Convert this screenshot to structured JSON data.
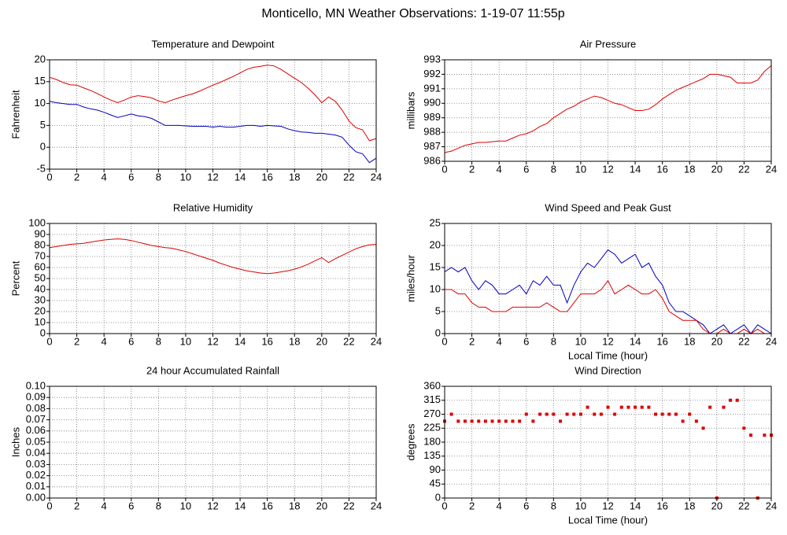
{
  "title": "Monticello, MN Weather Observations: 1-19-07 11:55p",
  "chart_data": [
    {
      "type": "line",
      "title": "Temperature and Dewpoint",
      "ylabel": "Fahrenheit",
      "x": [
        0,
        0.5,
        1,
        1.5,
        2,
        2.5,
        3,
        3.5,
        4,
        4.5,
        5,
        5.5,
        6,
        6.5,
        7,
        7.5,
        8,
        8.5,
        9,
        9.5,
        10,
        10.5,
        11,
        11.5,
        12,
        12.5,
        13,
        13.5,
        14,
        14.5,
        15,
        15.5,
        16,
        16.5,
        17,
        17.5,
        18,
        18.5,
        19,
        19.5,
        20,
        20.5,
        21,
        21.5,
        22,
        22.5,
        23,
        23.5,
        24
      ],
      "series": [
        {
          "color": "#dd0000",
          "values": [
            16,
            15.5,
            14.8,
            14.3,
            14.2,
            13.6,
            13,
            12.3,
            11.5,
            10.8,
            10.2,
            10.8,
            11.5,
            11.8,
            11.6,
            11.3,
            10.6,
            10.2,
            10.8,
            11.3,
            11.8,
            12.2,
            12.8,
            13.5,
            14.2,
            14.8,
            15.5,
            16.2,
            17,
            17.8,
            18.3,
            18.5,
            18.8,
            18.6,
            17.8,
            16.8,
            15.8,
            14.8,
            13.5,
            12,
            10.2,
            11.5,
            10.5,
            8.5,
            6,
            4.5,
            4,
            1.5,
            2
          ]
        },
        {
          "color": "#0000bb",
          "values": [
            10.5,
            10.2,
            10,
            9.8,
            9.8,
            9.2,
            8.8,
            8.5,
            8,
            7.4,
            6.8,
            7.2,
            7.6,
            7.2,
            7,
            6.6,
            5.8,
            5,
            5,
            5,
            4.9,
            4.8,
            4.8,
            4.8,
            4.6,
            4.8,
            4.6,
            4.6,
            4.8,
            5,
            5,
            4.8,
            5,
            4.9,
            4.8,
            4.2,
            3.8,
            3.5,
            3.4,
            3.2,
            3.2,
            3,
            2.8,
            2.3,
            0.5,
            -1,
            -1.5,
            -3.5,
            -2.5
          ]
        }
      ],
      "xlim": [
        0,
        24
      ],
      "xticks": [
        0,
        2,
        4,
        6,
        8,
        10,
        12,
        14,
        16,
        18,
        20,
        22,
        24
      ],
      "ylim": [
        -5,
        20
      ],
      "yticks": [
        -5,
        0,
        5,
        10,
        15,
        20
      ],
      "grid": true
    },
    {
      "type": "line",
      "title": "Air Pressure",
      "ylabel": "millibars",
      "x": [
        0,
        0.5,
        1,
        1.5,
        2,
        2.5,
        3,
        3.5,
        4,
        4.5,
        5,
        5.5,
        6,
        6.5,
        7,
        7.5,
        8,
        8.5,
        9,
        9.5,
        10,
        10.5,
        11,
        11.5,
        12,
        12.5,
        13,
        13.5,
        14,
        14.5,
        15,
        15.5,
        16,
        16.5,
        17,
        17.5,
        18,
        18.5,
        19,
        19.5,
        20,
        20.5,
        21,
        21.5,
        22,
        22.5,
        23,
        23.5,
        24
      ],
      "series": [
        {
          "color": "#dd0000",
          "values": [
            986.6,
            986.7,
            986.9,
            987.1,
            987.2,
            987.3,
            987.3,
            987.35,
            987.4,
            987.4,
            987.6,
            987.8,
            987.9,
            988.1,
            988.4,
            988.6,
            989,
            989.3,
            989.6,
            989.8,
            990.1,
            990.3,
            990.5,
            990.4,
            990.2,
            990,
            989.9,
            989.7,
            989.5,
            989.5,
            989.6,
            989.9,
            990.3,
            990.6,
            990.9,
            991.1,
            991.3,
            991.5,
            991.7,
            992,
            992,
            991.9,
            991.8,
            991.4,
            991.4,
            991.4,
            991.6,
            992.2,
            992.6
          ]
        }
      ],
      "xlim": [
        0,
        24
      ],
      "xticks": [
        0,
        2,
        4,
        6,
        8,
        10,
        12,
        14,
        16,
        18,
        20,
        22,
        24
      ],
      "ylim": [
        986,
        993
      ],
      "yticks": [
        986,
        987,
        988,
        989,
        990,
        991,
        992,
        993
      ],
      "grid": true
    },
    {
      "type": "line",
      "title": "Relative Humidity",
      "ylabel": "Percent",
      "x": [
        0,
        0.5,
        1,
        1.5,
        2,
        2.5,
        3,
        3.5,
        4,
        4.5,
        5,
        5.5,
        6,
        6.5,
        7,
        7.5,
        8,
        8.5,
        9,
        9.5,
        10,
        10.5,
        11,
        11.5,
        12,
        12.5,
        13,
        13.5,
        14,
        14.5,
        15,
        15.5,
        16,
        16.5,
        17,
        17.5,
        18,
        18.5,
        19,
        19.5,
        20,
        20.5,
        21,
        21.5,
        22,
        22.5,
        23,
        23.5,
        24
      ],
      "series": [
        {
          "color": "#dd0000",
          "values": [
            78,
            79,
            80,
            81,
            81.5,
            82,
            83,
            84,
            85,
            85.5,
            86,
            85.5,
            84.5,
            83,
            81.5,
            80,
            79,
            78,
            77.5,
            76,
            74.5,
            72.5,
            70.5,
            68.5,
            66.5,
            64,
            62,
            60,
            58.5,
            57,
            56,
            55,
            54.5,
            55,
            56,
            57,
            58.5,
            60.5,
            63,
            66,
            69,
            64.5,
            68,
            71,
            74,
            77,
            79,
            80.5,
            81
          ]
        }
      ],
      "xlim": [
        0,
        24
      ],
      "xticks": [
        0,
        2,
        4,
        6,
        8,
        10,
        12,
        14,
        16,
        18,
        20,
        22,
        24
      ],
      "ylim": [
        0,
        100
      ],
      "yticks": [
        0,
        10,
        20,
        30,
        40,
        50,
        60,
        70,
        80,
        90,
        100
      ],
      "grid": true
    },
    {
      "type": "line",
      "title": "Wind Speed and Peak Gust",
      "ylabel": "miles/hour",
      "xlabel": "Local Time (hour)",
      "x": [
        0,
        0.5,
        1,
        1.5,
        2,
        2.5,
        3,
        3.5,
        4,
        4.5,
        5,
        5.5,
        6,
        6.5,
        7,
        7.5,
        8,
        8.5,
        9,
        9.5,
        10,
        10.5,
        11,
        11.5,
        12,
        12.5,
        13,
        13.5,
        14,
        14.5,
        15,
        15.5,
        16,
        16.5,
        17,
        17.5,
        18,
        18.5,
        19,
        19.5,
        20,
        20.5,
        21,
        21.5,
        22,
        22.5,
        23,
        23.5,
        24
      ],
      "series": [
        {
          "color": "#0000bb",
          "values": [
            14,
            15,
            14,
            15,
            12,
            10,
            12,
            11,
            9,
            9,
            10,
            11,
            9,
            12,
            11,
            13,
            11,
            11,
            7,
            11,
            14,
            16,
            15,
            17,
            19,
            18,
            16,
            17,
            18,
            15,
            16,
            13,
            11,
            7,
            5,
            5,
            4,
            3,
            2,
            0,
            1,
            2,
            0,
            1,
            2,
            0,
            2,
            1,
            0
          ]
        },
        {
          "color": "#dd0000",
          "values": [
            10,
            10,
            9,
            9,
            7,
            6,
            6,
            5,
            5,
            5,
            6,
            6,
            6,
            6,
            6,
            7,
            6,
            5,
            5,
            7,
            9,
            9,
            9,
            10,
            12,
            9,
            10,
            11,
            10,
            9,
            9,
            10,
            8,
            5,
            4,
            3,
            3,
            3,
            1,
            0,
            0,
            1,
            0,
            0,
            1,
            0,
            1,
            0,
            0
          ]
        }
      ],
      "xlim": [
        0,
        24
      ],
      "xticks": [
        0,
        2,
        4,
        6,
        8,
        10,
        12,
        14,
        16,
        18,
        20,
        22,
        24
      ],
      "ylim": [
        0,
        25
      ],
      "yticks": [
        0,
        5,
        10,
        15,
        20,
        25
      ],
      "grid": true
    },
    {
      "type": "line",
      "title": "24 hour Accumulated Rainfall",
      "ylabel": "Inches",
      "x": [
        0,
        24
      ],
      "series": [
        {
          "color": "#dd0000",
          "values": [
            0,
            0
          ]
        }
      ],
      "xlim": [
        0,
        24
      ],
      "xticks": [
        0,
        2,
        4,
        6,
        8,
        10,
        12,
        14,
        16,
        18,
        20,
        22,
        24
      ],
      "ylim": [
        0,
        0.1
      ],
      "yticks": [
        {
          "value": 0,
          "label": "0.00"
        },
        0.01,
        0.02,
        0.03,
        0.04,
        0.05,
        0.06,
        0.07,
        0.08,
        0.09,
        {
          "value": 0.1,
          "label": "0.10"
        }
      ],
      "grid": true
    },
    {
      "type": "scatter",
      "title": "Wind Direction",
      "ylabel": "degrees",
      "xlabel": "Local Time (hour)",
      "x": [
        0,
        0.5,
        1,
        1.5,
        2,
        2.5,
        3,
        3.5,
        4,
        4.5,
        5,
        5.5,
        6,
        6.5,
        7,
        7.5,
        8,
        8.5,
        9,
        9.5,
        10,
        10.5,
        11,
        11.5,
        12,
        12.5,
        13,
        13.5,
        14,
        14.5,
        15,
        15.5,
        16,
        16.5,
        17,
        17.5,
        18,
        18.5,
        19,
        19.5,
        20,
        20.5,
        21,
        21.5,
        22,
        22.5,
        23,
        23.5,
        24
      ],
      "series": [
        {
          "color": "#dd0000",
          "values": [
            247.5,
            270,
            247.5,
            247.5,
            247.5,
            247.5,
            247.5,
            247.5,
            247.5,
            247.5,
            247.5,
            247.5,
            270,
            247.5,
            270,
            270,
            270,
            247.5,
            270,
            270,
            270,
            292.5,
            270,
            270,
            292.5,
            270,
            292.5,
            292.5,
            292.5,
            292.5,
            292.5,
            270,
            270,
            270,
            270,
            247.5,
            270,
            247.5,
            225,
            292.5,
            0,
            292.5,
            315,
            315,
            225,
            202.5,
            0,
            202.5,
            202.5
          ]
        }
      ],
      "xlim": [
        0,
        24
      ],
      "xticks": [
        0,
        2,
        4,
        6,
        8,
        10,
        12,
        14,
        16,
        18,
        20,
        22,
        24
      ],
      "ylim": [
        0,
        360
      ],
      "yticks": [
        0,
        45,
        90,
        135,
        180,
        225,
        270,
        315,
        360
      ],
      "grid": true
    }
  ]
}
